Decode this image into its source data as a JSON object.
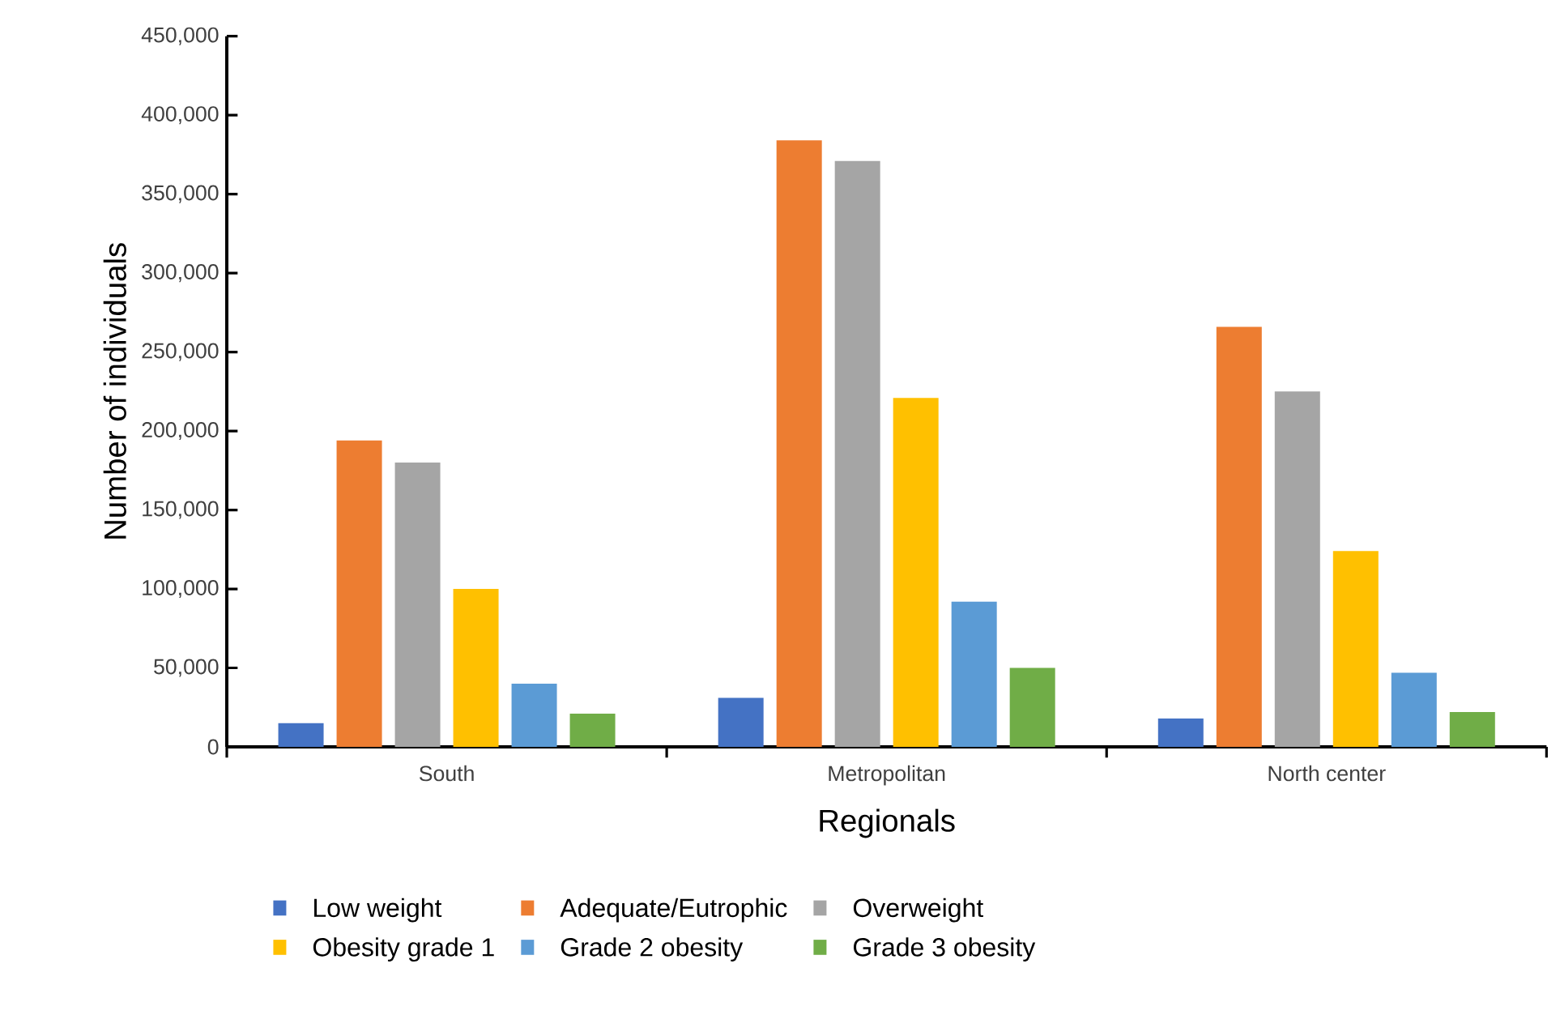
{
  "chart_data": {
    "type": "bar",
    "xlabel": "Regionals",
    "ylabel": "Number of individuals",
    "categories": [
      "South",
      "Metropolitan",
      "North center"
    ],
    "series": [
      {
        "name": "Low weight",
        "color": "#4472c4",
        "values": [
          15000,
          31000,
          18000
        ]
      },
      {
        "name": "Adequate/Eutrophic",
        "color": "#ed7d31",
        "values": [
          194000,
          384000,
          266000
        ]
      },
      {
        "name": "Overweight",
        "color": "#a5a5a5",
        "values": [
          180000,
          371000,
          225000
        ]
      },
      {
        "name": "Obesity grade 1",
        "color": "#ffc000",
        "values": [
          100000,
          221000,
          124000
        ]
      },
      {
        "name": "Grade 2 obesity",
        "color": "#5b9bd5",
        "values": [
          40000,
          92000,
          47000
        ]
      },
      {
        "name": "Grade 3 obesity",
        "color": "#70ad47",
        "values": [
          21000,
          50000,
          22000
        ]
      }
    ],
    "ylim": [
      0,
      450000
    ],
    "yticks": [
      0,
      {
        "value": 50000,
        "label": "50,000"
      },
      {
        "value": 100000,
        "label": "100,000"
      },
      {
        "value": 150000,
        "label": "150,000"
      },
      {
        "value": 200000,
        "label": "200,000"
      },
      {
        "value": 250000,
        "label": "250,000"
      },
      {
        "value": 300000,
        "label": "300,000"
      },
      {
        "value": 350000,
        "label": "350,000"
      },
      {
        "value": 400000,
        "label": "400,000"
      },
      {
        "value": 450000,
        "label": "450,000"
      }
    ],
    "grid": false,
    "legend": "bottom"
  }
}
